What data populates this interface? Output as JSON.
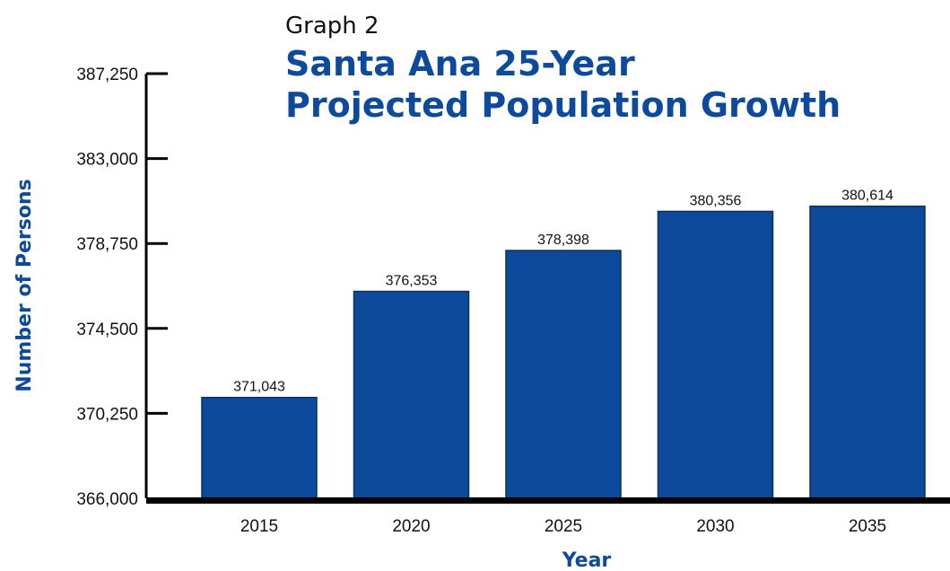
{
  "chart_data": {
    "type": "bar",
    "supertitle": "Graph 2",
    "title_lines": [
      "Santa Ana 25-Year",
      "Projected Population Growth"
    ],
    "xlabel": "Year",
    "ylabel": "Number of Persons",
    "categories": [
      "2015",
      "2020",
      "2025",
      "2030",
      "2035"
    ],
    "values": [
      371043,
      376353,
      378398,
      380356,
      380614
    ],
    "value_labels": [
      "371,043",
      "376,353",
      "378,398",
      "380,356",
      "380,614"
    ],
    "ylim": [
      366000,
      387250
    ],
    "yticks": [
      366000,
      370250,
      374500,
      378750,
      383000,
      387250
    ],
    "ytick_labels": [
      "366,000",
      "370,250",
      "374,500",
      "378,750",
      "383,000",
      "387,250"
    ],
    "grid": false,
    "legend": "none",
    "bar_color": "#0d4a9c",
    "title_color": "#0d4a9c",
    "axis_color": "#000000"
  }
}
